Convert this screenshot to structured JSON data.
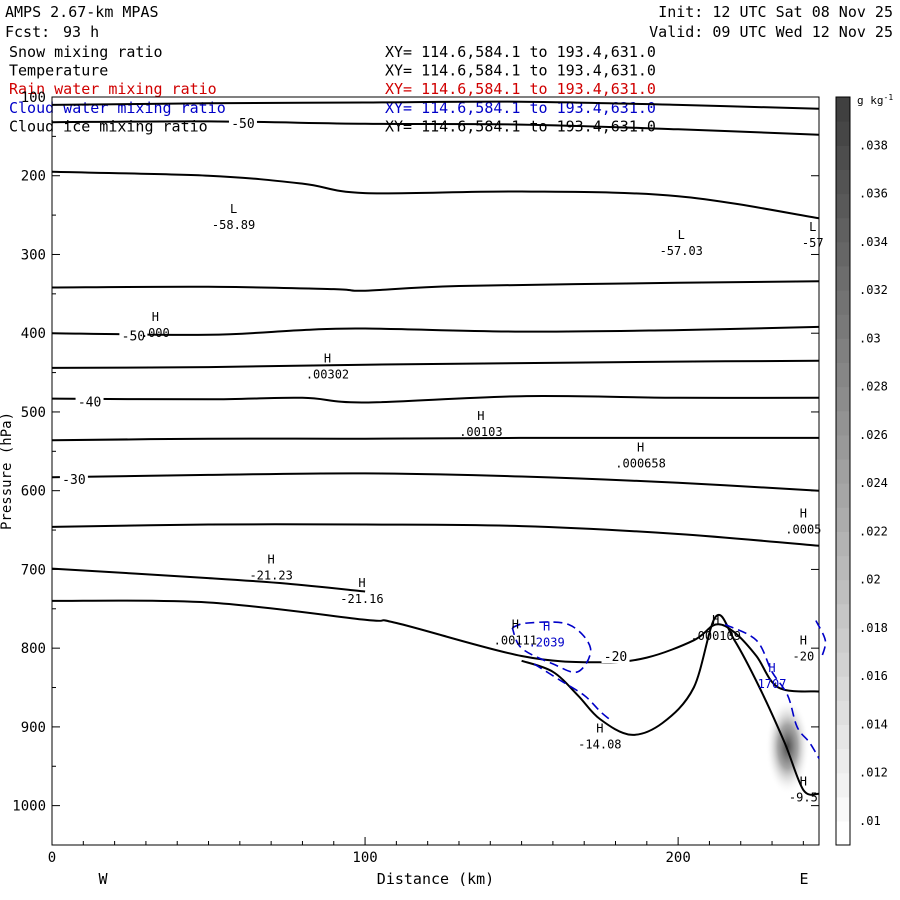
{
  "header": {
    "model": "AMPS 2.67-km MPAS",
    "forecast_label": "Fcst:",
    "forecast_hours": "93 h",
    "init": "Init: 12 UTC Sat 08 Nov 25",
    "valid": "Valid: 09 UTC Wed 12 Nov 25"
  },
  "fields": [
    {
      "name": "Snow mixing ratio",
      "xy": "XY= 114.6,584.1 to 193.4,631.0",
      "color": "#000000"
    },
    {
      "name": "Temperature",
      "xy": "XY= 114.6,584.1 to 193.4,631.0",
      "color": "#000000"
    },
    {
      "name": "Rain water mixing ratio",
      "xy": "XY= 114.6,584.1 to 193.4,631.0",
      "color": "#d00000"
    },
    {
      "name": "Cloud water mixing ratio",
      "xy": "XY= 114.6,584.1 to 193.4,631.0",
      "color": "#0000c8"
    },
    {
      "name": "Cloud ice mixing ratio",
      "xy": "XY= 114.6,584.1 to 193.4,631.0",
      "color": "#000000"
    }
  ],
  "chart_data": {
    "type": "cross-section contour",
    "xlabel": "Distance (km)",
    "ylabel": "Pressure (hPa)",
    "xlim": [
      0,
      245
    ],
    "ylim": [
      1050,
      100
    ],
    "x_ticks": [
      "0",
      "100",
      "200"
    ],
    "y_ticks": [
      "100",
      "200",
      "300",
      "400",
      "500",
      "600",
      "700",
      "800",
      "900",
      "1000"
    ],
    "west_label": "W",
    "east_label": "E",
    "temperature_contours": [
      {
        "points": [
          [
            0,
            110
          ],
          [
            50,
            108
          ],
          [
            100,
            107
          ],
          [
            150,
            106
          ],
          [
            200,
            110
          ],
          [
            245,
            115
          ]
        ]
      },
      {
        "points": [
          [
            0,
            132
          ],
          [
            50,
            131
          ],
          [
            100,
            134
          ],
          [
            150,
            135
          ],
          [
            200,
            141
          ],
          [
            245,
            148
          ]
        ],
        "label": "-50",
        "label_at": [
          61,
          133
        ]
      },
      {
        "points": [
          [
            0,
            195
          ],
          [
            50,
            200
          ],
          [
            80,
            210
          ],
          [
            100,
            222
          ],
          [
            150,
            220
          ],
          [
            200,
            226
          ],
          [
            245,
            254
          ]
        ]
      },
      {
        "points": [
          [
            0,
            342
          ],
          [
            50,
            341
          ],
          [
            90,
            344
          ],
          [
            100,
            346
          ],
          [
            130,
            340
          ],
          [
            200,
            336
          ],
          [
            245,
            334
          ]
        ]
      },
      {
        "points": [
          [
            0,
            400
          ],
          [
            50,
            402
          ],
          [
            80,
            396
          ],
          [
            100,
            394
          ],
          [
            150,
            398
          ],
          [
            200,
            396
          ],
          [
            245,
            392
          ]
        ],
        "label": "-50",
        "label_at": [
          26,
          403
        ]
      },
      {
        "points": [
          [
            0,
            444
          ],
          [
            50,
            443
          ],
          [
            100,
            440
          ],
          [
            150,
            438
          ],
          [
            200,
            436
          ],
          [
            245,
            435
          ]
        ]
      },
      {
        "points": [
          [
            0,
            483
          ],
          [
            50,
            484
          ],
          [
            80,
            482
          ],
          [
            100,
            488
          ],
          [
            150,
            480
          ],
          [
            200,
            482
          ],
          [
            245,
            482
          ]
        ],
        "label": "-40",
        "label_at": [
          12,
          487
        ]
      },
      {
        "points": [
          [
            0,
            536
          ],
          [
            50,
            534
          ],
          [
            100,
            534
          ],
          [
            150,
            533
          ],
          [
            200,
            533
          ],
          [
            245,
            533
          ]
        ]
      },
      {
        "points": [
          [
            0,
            583
          ],
          [
            50,
            580
          ],
          [
            100,
            578
          ],
          [
            150,
            582
          ],
          [
            200,
            590
          ],
          [
            245,
            600
          ]
        ],
        "label": "-30",
        "label_at": [
          7,
          585
        ]
      },
      {
        "points": [
          [
            0,
            646
          ],
          [
            50,
            643
          ],
          [
            100,
            643
          ],
          [
            150,
            645
          ],
          [
            200,
            655
          ],
          [
            245,
            670
          ]
        ]
      },
      {
        "points": [
          [
            0,
            699
          ],
          [
            50,
            711
          ],
          [
            75,
            718
          ],
          [
            100,
            728
          ]
        ]
      },
      {
        "points": [
          [
            0,
            740
          ],
          [
            50,
            742
          ],
          [
            100,
            764
          ],
          [
            110,
            768
          ],
          [
            150,
            810
          ],
          [
            175,
            818
          ],
          [
            190,
            812
          ],
          [
            205,
            790
          ],
          [
            212,
            770
          ],
          [
            218,
            780
          ],
          [
            225,
            810
          ],
          [
            232,
            850
          ],
          [
            245,
            855
          ]
        ],
        "label": "-20",
        "label_at": [
          180,
          810
        ]
      },
      {
        "points": [
          [
            150,
            816
          ],
          [
            160,
            830
          ],
          [
            168,
            860
          ],
          [
            175,
            890
          ],
          [
            185,
            910
          ],
          [
            195,
            895
          ],
          [
            205,
            850
          ],
          [
            212,
            760
          ],
          [
            218,
            790
          ],
          [
            226,
            850
          ],
          [
            234,
            920
          ],
          [
            240,
            980
          ],
          [
            245,
            985
          ]
        ]
      }
    ],
    "cloud_water_contours": [
      {
        "points": [
          [
            147,
            774
          ],
          [
            152,
            768
          ],
          [
            165,
            770
          ],
          [
            172,
            800
          ],
          [
            168,
            830
          ],
          [
            160,
            820
          ],
          [
            150,
            800
          ],
          [
            147,
            774
          ]
        ]
      },
      {
        "points": [
          [
            154,
            820
          ],
          [
            162,
            840
          ],
          [
            170,
            860
          ],
          [
            175,
            880
          ],
          [
            178,
            890
          ]
        ]
      },
      {
        "points": [
          [
            215,
            770
          ],
          [
            225,
            790
          ],
          [
            230,
            830
          ],
          [
            235,
            860
          ],
          [
            238,
            900
          ],
          [
            242,
            920
          ],
          [
            245,
            940
          ]
        ]
      },
      {
        "points": [
          [
            244,
            765
          ],
          [
            247,
            790
          ],
          [
            246,
            810
          ]
        ]
      }
    ],
    "snow_shading": {
      "x": 235,
      "p": 925,
      "max": 0.02
    },
    "extrema": [
      {
        "kind": "L",
        "value": "-58.89",
        "x": 58,
        "p": 260
      },
      {
        "kind": "L",
        "value": "-57.03",
        "x": 201,
        "p": 293
      },
      {
        "kind": "L",
        "value": "-57",
        "x": 243,
        "p": 283
      },
      {
        "kind": "H",
        "value": ".000",
        "x": 33,
        "p": 397
      },
      {
        "kind": "H",
        "value": ".00302",
        "x": 88,
        "p": 450
      },
      {
        "kind": "H",
        "value": ".00103",
        "x": 137,
        "p": 523
      },
      {
        "kind": "H",
        "value": ".000658",
        "x": 188,
        "p": 563
      },
      {
        "kind": "H",
        "value": ".0005",
        "x": 240,
        "p": 647
      },
      {
        "kind": "H",
        "value": "-21.23",
        "x": 70,
        "p": 705
      },
      {
        "kind": "H",
        "value": "-21.16",
        "x": 99,
        "p": 735
      },
      {
        "kind": "H",
        "value": ".00111",
        "x": 148,
        "p": 788
      },
      {
        "kind": "H",
        "value": ".2039",
        "x": 158,
        "p": 790
      },
      {
        "kind": "H",
        "value": ".000109",
        "x": 212,
        "p": 782
      },
      {
        "kind": "H",
        "value": "-20",
        "x": 240,
        "p": 808
      },
      {
        "kind": "H",
        "value": "1707",
        "x": 230,
        "p": 843
      },
      {
        "kind": "H",
        "value": "-14.08",
        "x": 175,
        "p": 920
      },
      {
        "kind": "H",
        "value": "-9.5",
        "x": 240,
        "p": 987
      }
    ],
    "colorbar": {
      "units": "g kg",
      "units_sup": "-1",
      "ticks": [
        ".01",
        ".012",
        ".014",
        ".016",
        ".018",
        ".02",
        ".022",
        ".024",
        ".026",
        ".028",
        ".03",
        ".032",
        ".034",
        ".036",
        ".038"
      ],
      "range": [
        0.009,
        0.04
      ]
    }
  }
}
